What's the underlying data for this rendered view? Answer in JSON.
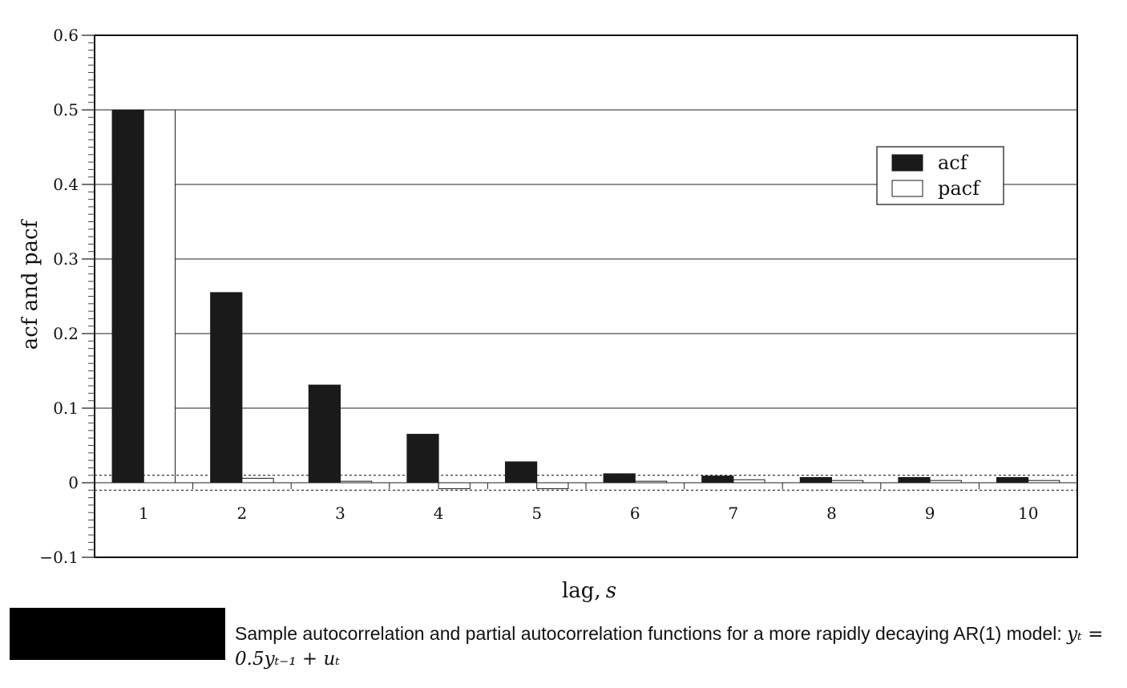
{
  "chart_data": {
    "type": "bar",
    "xlabel_text": "lag,",
    "xlabel_var": "s",
    "ylabel": "acf and pacf",
    "ylim": [
      -0.1,
      0.6
    ],
    "yticks": [
      "−0.1",
      "0",
      "0.1",
      "0.2",
      "0.3",
      "0.4",
      "0.5",
      "0.6"
    ],
    "ytick_values": [
      -0.1,
      0,
      0.1,
      0.2,
      0.3,
      0.4,
      0.5,
      0.6
    ],
    "categories": [
      "1",
      "2",
      "3",
      "4",
      "5",
      "6",
      "7",
      "8",
      "9",
      "10"
    ],
    "series": [
      {
        "name": "acf",
        "color": "#1a1a1a",
        "values": [
          0.5,
          0.255,
          0.131,
          0.065,
          0.028,
          0.012,
          0.009,
          0.007,
          0.007,
          0.007
        ]
      },
      {
        "name": "pacf",
        "color": "#ffffff",
        "values": [
          0.5,
          0.006,
          0.002,
          -0.008,
          -0.008,
          0.002,
          0.004,
          0.003,
          0.003,
          0.003
        ]
      }
    ],
    "confidence_band": [
      -0.01,
      0.01
    ],
    "grid": true,
    "legend_position": "top-right"
  },
  "caption": {
    "text": "Sample autocorrelation and partial autocorrelation functions for a more rapidly decaying AR(1) model: ",
    "formula": "yₜ = 0.5yₜ₋₁ + uₜ"
  }
}
